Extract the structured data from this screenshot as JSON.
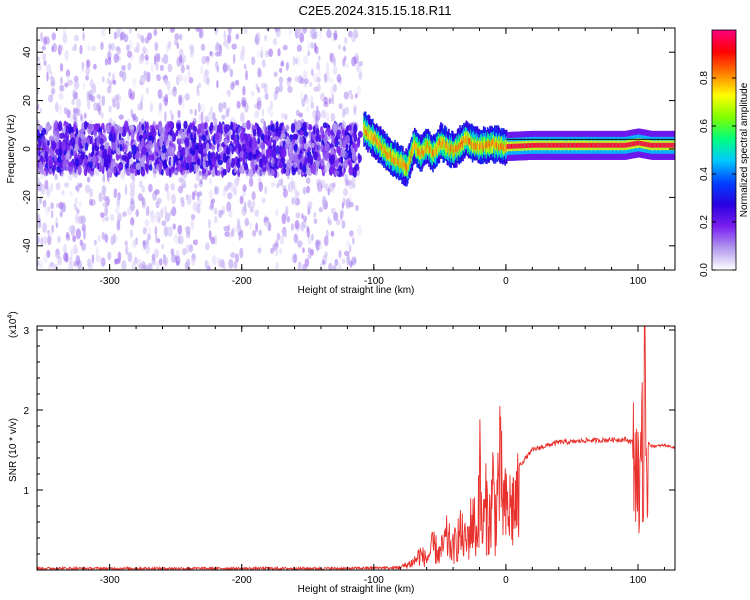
{
  "title": "C2E5.2024.315.15.18.R11",
  "chart_data": [
    {
      "type": "heatmap",
      "xlabel": "Height of straight line (km)",
      "ylabel": "Frequency (Hz)",
      "xlim": [
        -355,
        128
      ],
      "ylim": [
        -50,
        50
      ],
      "xticks": [
        -300,
        -200,
        -100,
        0,
        100
      ],
      "yticks": [
        -40,
        -20,
        0,
        20,
        40
      ],
      "colorbar": {
        "label": "Normalized spectral amplitude",
        "range": [
          0,
          1
        ],
        "ticks": [
          0.0,
          0.2,
          0.4,
          0.6,
          0.8
        ],
        "tick_labels": [
          "0.0",
          "0.2",
          "0.4",
          "0.6",
          "0.8"
        ],
        "colormap": "rainbow",
        "colors": [
          "#ffffff",
          "#b399ee",
          "#7a1ff0",
          "#2a00e0",
          "#0040ff",
          "#00c8ff",
          "#00ff80",
          "#80ff00",
          "#ffff00",
          "#ff8000",
          "#ff0000",
          "#ff0080"
        ]
      },
      "noise_region": {
        "x_from": -355,
        "x_to": -110,
        "spread_hz": 50,
        "band_hz": 10,
        "amplitude": "0.05-0.3"
      },
      "ridge": [
        {
          "x": -108,
          "y": 8
        },
        {
          "x": -100,
          "y": 4
        },
        {
          "x": -95,
          "y": 1
        },
        {
          "x": -90,
          "y": -2
        },
        {
          "x": -85,
          "y": -4
        },
        {
          "x": -80,
          "y": -6
        },
        {
          "x": -75,
          "y": -8
        },
        {
          "x": -70,
          "y": 2
        },
        {
          "x": -65,
          "y": -2
        },
        {
          "x": -60,
          "y": 1
        },
        {
          "x": -55,
          "y": -2
        },
        {
          "x": -50,
          "y": 3
        },
        {
          "x": -45,
          "y": 1
        },
        {
          "x": -40,
          "y": -1
        },
        {
          "x": -35,
          "y": 2
        },
        {
          "x": -30,
          "y": 4
        },
        {
          "x": -25,
          "y": 2
        },
        {
          "x": -20,
          "y": 1
        },
        {
          "x": -10,
          "y": 2
        },
        {
          "x": 0,
          "y": 1
        },
        {
          "x": 20,
          "y": 1.5
        },
        {
          "x": 60,
          "y": 1.5
        },
        {
          "x": 90,
          "y": 1.5
        },
        {
          "x": 100,
          "y": 2.5
        },
        {
          "x": 110,
          "y": 1.5
        },
        {
          "x": 128,
          "y": 1.5
        }
      ]
    },
    {
      "type": "line",
      "xlabel": "Height of straight line (km)",
      "ylabel": "SNR (10 * v/v)",
      "y_multiplier": "(x10",
      "y_multiplier_exp": "4",
      "xlim": [
        -355,
        128
      ],
      "ylim": [
        0,
        3.05
      ],
      "xticks": [
        -300,
        -200,
        -100,
        0,
        100
      ],
      "yticks": [
        1,
        2,
        3
      ],
      "color": "#e8302c",
      "series": [
        {
          "x": [
            -355,
            -300,
            -200,
            -120,
            -90,
            -80,
            -70,
            -65,
            -60,
            -55,
            -50,
            -45,
            -40,
            -35,
            -30,
            -25,
            -22,
            -20,
            -18,
            -15,
            -12,
            -10,
            -8,
            -5,
            -2,
            0,
            5,
            10,
            20,
            30,
            40,
            50,
            60,
            70,
            80,
            90,
            97,
            100,
            101,
            103,
            104,
            105,
            106,
            108,
            110,
            115,
            120,
            128
          ],
          "y": [
            0.02,
            0.02,
            0.02,
            0.02,
            0.03,
            0.05,
            0.15,
            0.3,
            0.2,
            0.45,
            0.3,
            0.6,
            0.4,
            0.7,
            0.5,
            1.0,
            0.6,
            1.9,
            0.7,
            1.2,
            0.9,
            1.6,
            1.0,
            1.9,
            1.3,
            1.1,
            1.2,
            1.3,
            1.5,
            1.55,
            1.6,
            1.6,
            1.62,
            1.62,
            1.63,
            1.63,
            1.6,
            1.3,
            0.8,
            2.6,
            0.3,
            3.05,
            1.0,
            1.6,
            1.55,
            1.55,
            1.56,
            1.53
          ]
        }
      ]
    }
  ]
}
